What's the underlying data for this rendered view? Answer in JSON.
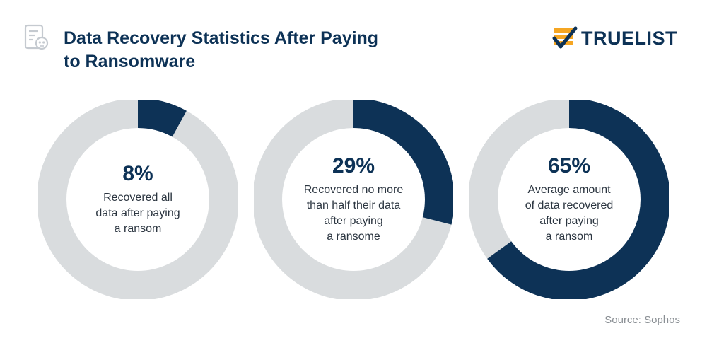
{
  "header": {
    "title_lines": [
      "Data Recovery Statistics After Paying",
      "to Ransomware"
    ],
    "icon": "document-skull-icon"
  },
  "brand": {
    "name": "TRUELIST",
    "mark_icon": "checklist-checkmark-icon",
    "mark_color": "#f5a623"
  },
  "colors": {
    "accent": "#0d3256",
    "track": "#d9dcde",
    "halo": "#f2f3f4"
  },
  "chart_data": [
    {
      "type": "pie",
      "variant": "donut",
      "value": 8,
      "unit": "%",
      "label": "8%",
      "caption_lines": [
        "Recovered all",
        "data after paying",
        "a ransom"
      ]
    },
    {
      "type": "pie",
      "variant": "donut",
      "value": 29,
      "unit": "%",
      "label": "29%",
      "caption_lines": [
        "Recovered no more",
        "than half their data",
        "after paying",
        "a ransome"
      ]
    },
    {
      "type": "pie",
      "variant": "donut",
      "value": 65,
      "unit": "%",
      "label": "65%",
      "caption_lines": [
        "Average amount",
        "of data recovered",
        "after paying",
        "a ransom"
      ]
    }
  ],
  "footer": {
    "source": "Source: Sophos"
  }
}
